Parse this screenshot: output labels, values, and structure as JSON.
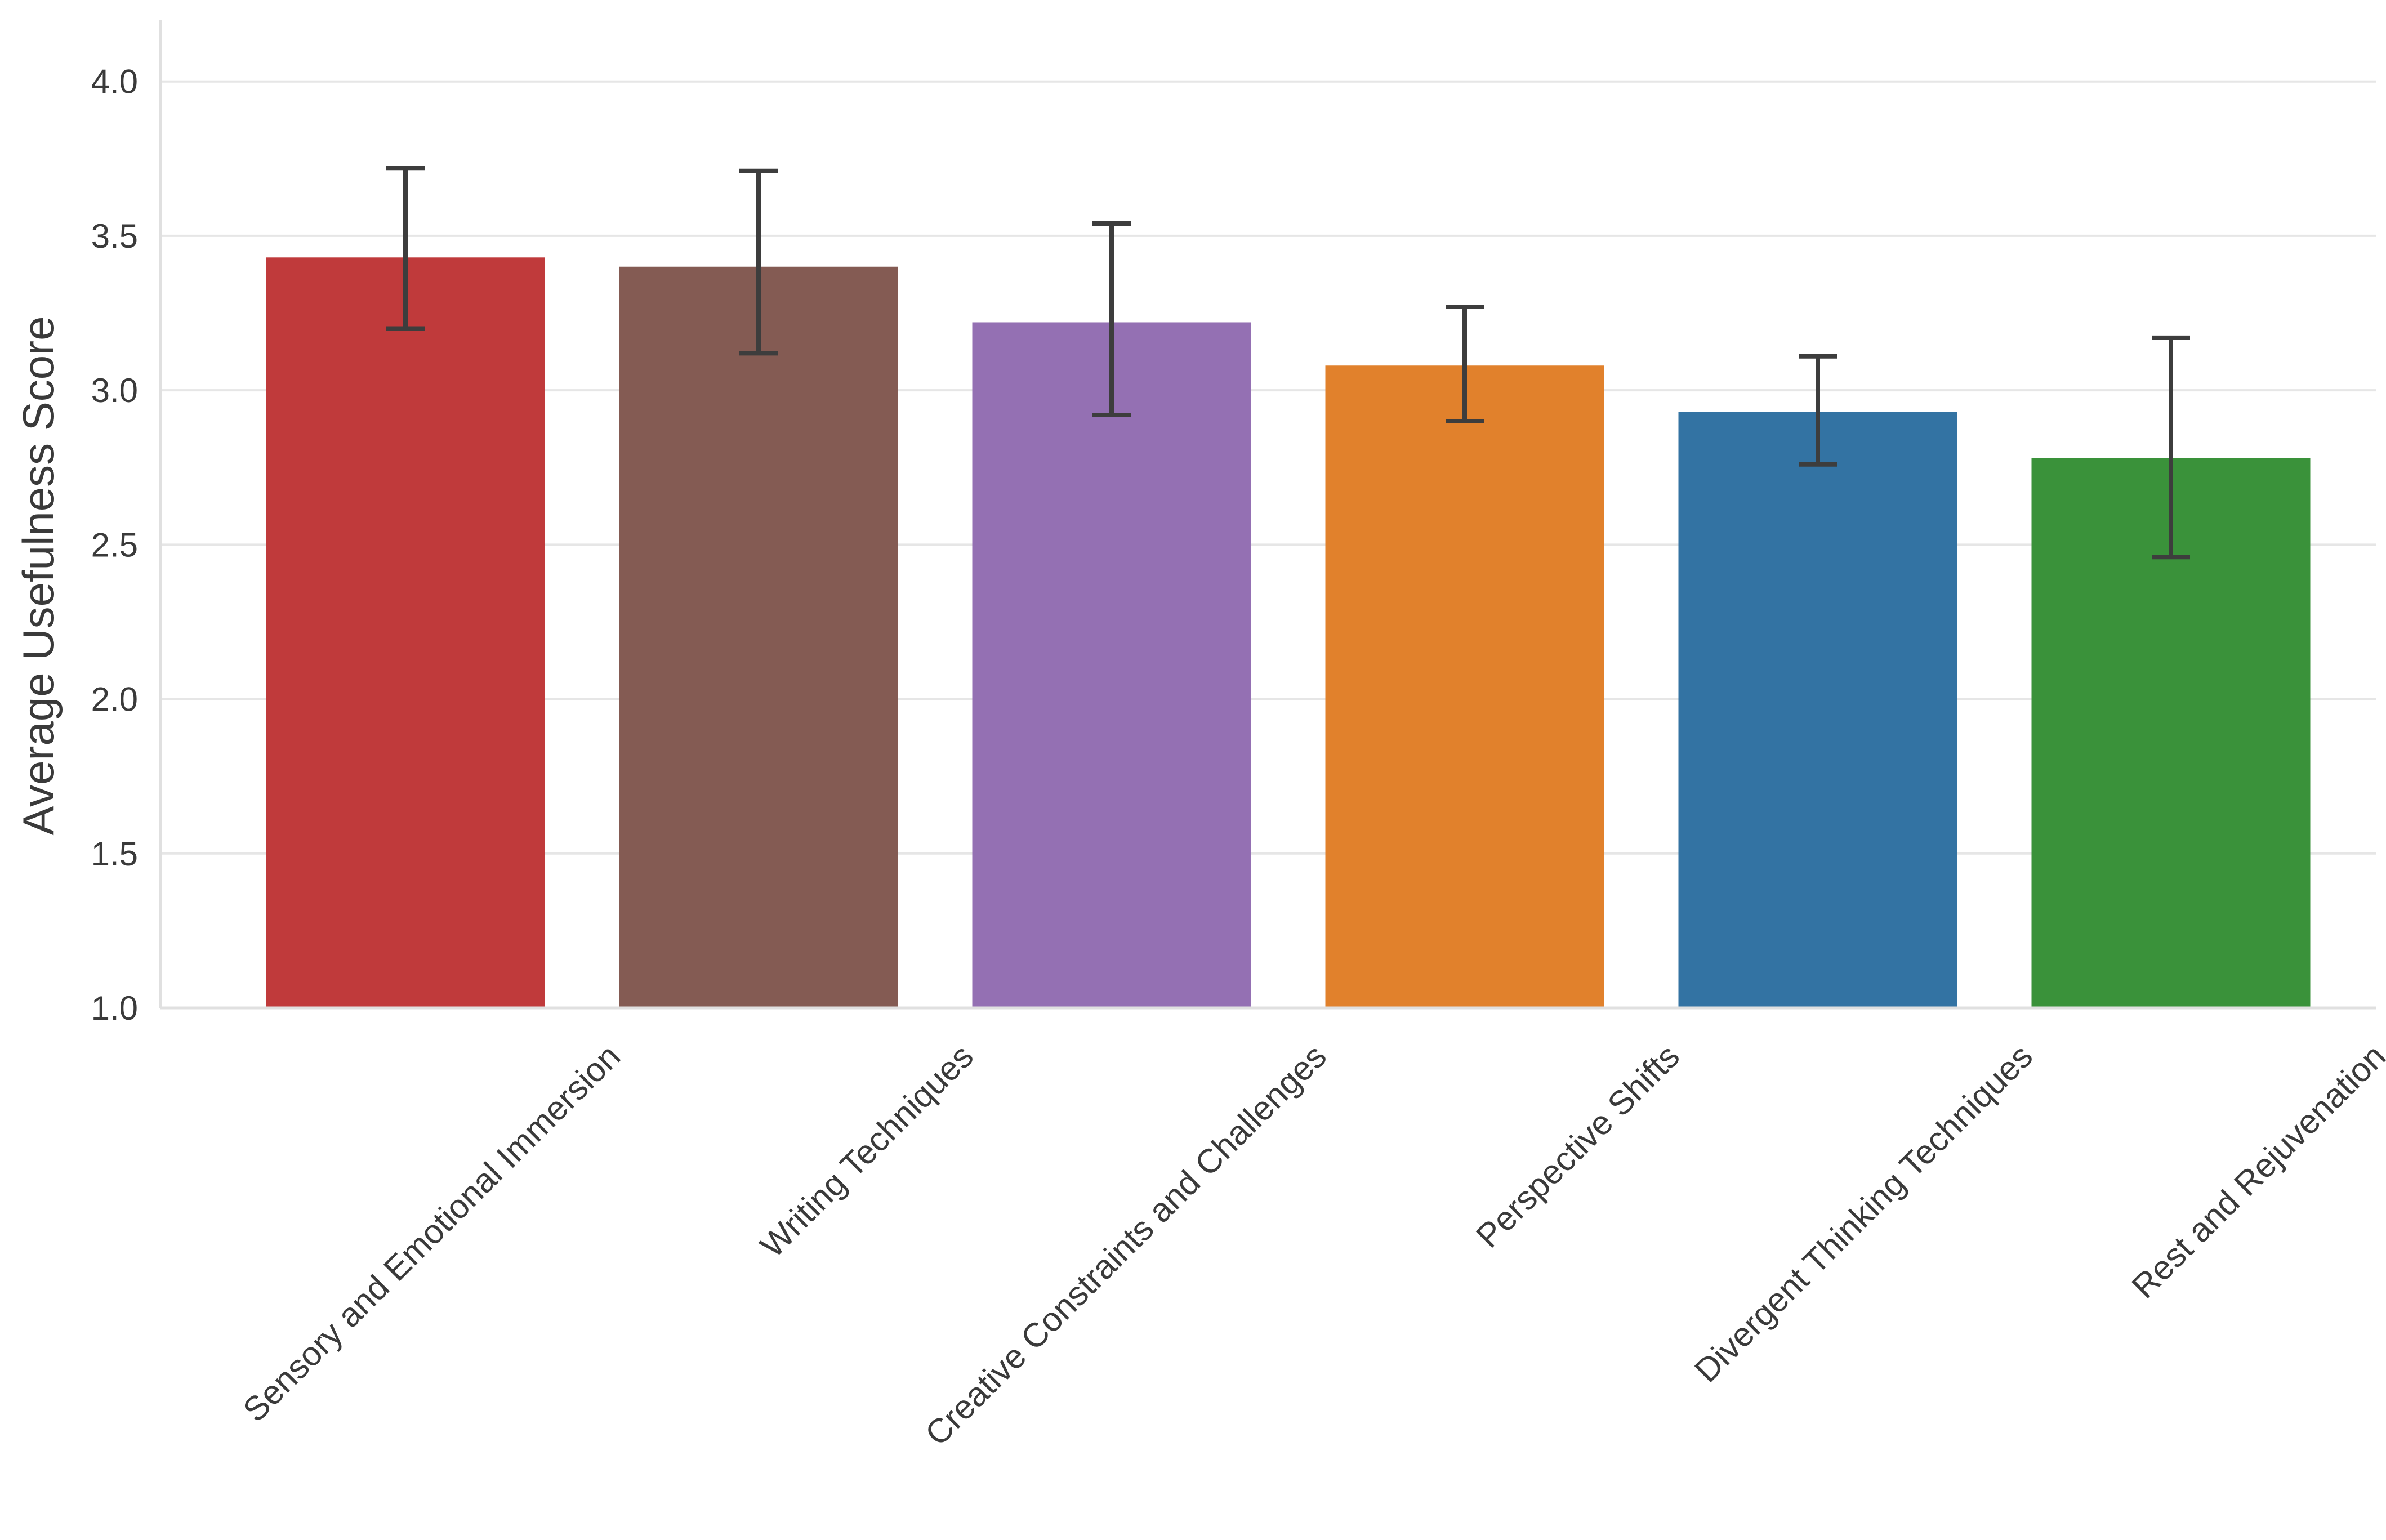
{
  "chart_data": {
    "type": "bar",
    "title": "",
    "xlabel": "",
    "ylabel": "Average Usefulness Score",
    "ylim": [
      1.0,
      4.2
    ],
    "yticks": [
      "1.0",
      "1.5",
      "2.0",
      "2.5",
      "3.0",
      "3.5",
      "4.0"
    ],
    "grid": true,
    "categories": [
      "Sensory and Emotional Immersion",
      "Writing Techniques",
      "Creative Constraints and Challenges",
      "Perspective Shifts",
      "Divergent Thinking Techniques",
      "Rest and Rejuvenation"
    ],
    "values": [
      3.43,
      3.4,
      3.22,
      3.08,
      2.93,
      2.78
    ],
    "error_low": [
      3.2,
      3.12,
      2.92,
      2.9,
      2.76,
      2.46
    ],
    "error_high": [
      3.72,
      3.71,
      3.54,
      3.27,
      3.11,
      3.17
    ],
    "colors": [
      "#C03A3B",
      "#845B53",
      "#9470B3",
      "#E1812C",
      "#3373A3",
      "#3A923A"
    ],
    "errorbar_color": "#3d3d3d"
  }
}
